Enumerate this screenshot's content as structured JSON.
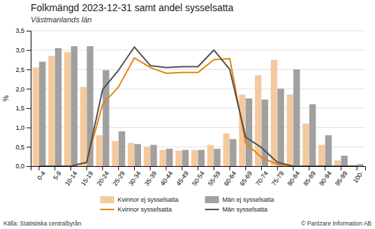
{
  "chart_data": {
    "type": "bar",
    "title": "Folkmängd 2023-12-31 samt andel sysselsatta",
    "subtitle": "Västmanlands län",
    "ylabel": "%",
    "categories": [
      "0-4",
      "5-9",
      "10-14",
      "15-19",
      "20-24",
      "25-29",
      "30-34",
      "35-39",
      "40-44",
      "45-49",
      "50-54",
      "55-59",
      "60-64",
      "65-69",
      "70-74",
      "75-79",
      "80-84",
      "85-89",
      "90-94",
      "95-99",
      "100-"
    ],
    "series": [
      {
        "name": "Kvinnor ej sysselsatta",
        "type": "bar",
        "color": "#f5c9a0",
        "values": [
          2.55,
          2.85,
          2.95,
          2.05,
          0.8,
          0.65,
          0.6,
          0.5,
          0.42,
          0.4,
          0.42,
          0.55,
          0.85,
          1.85,
          2.35,
          2.75,
          1.85,
          1.1,
          0.55,
          0.15,
          0.03
        ]
      },
      {
        "name": "Män ej sysselsatta",
        "type": "bar",
        "color": "#a0a0a0",
        "values": [
          2.7,
          3.05,
          3.1,
          3.1,
          2.48,
          0.9,
          0.57,
          0.55,
          0.45,
          0.42,
          0.42,
          0.45,
          0.7,
          1.75,
          1.72,
          2.0,
          2.5,
          1.6,
          0.8,
          0.27,
          0.05
        ]
      },
      {
        "name": "Kvinnor sysselsatta",
        "type": "line",
        "color": "#e8820a",
        "values": [
          0.0,
          0.0,
          0.0,
          0.1,
          1.6,
          2.05,
          2.8,
          2.55,
          2.4,
          2.42,
          2.42,
          2.75,
          2.78,
          0.6,
          0.22,
          0.05,
          0.0,
          0.0,
          0.0,
          0.0,
          0.0
        ]
      },
      {
        "name": "Män sysselsatta",
        "type": "line",
        "color": "#505050",
        "values": [
          0.0,
          0.0,
          0.0,
          0.1,
          1.98,
          2.48,
          3.08,
          2.6,
          2.55,
          2.57,
          2.57,
          3.0,
          2.5,
          0.75,
          0.48,
          0.1,
          0.0,
          0.0,
          0.0,
          0.0,
          0.0
        ]
      }
    ],
    "ylim": [
      0,
      3.5
    ],
    "yticks": [
      {
        "value": 0.0,
        "label": "0,0"
      },
      {
        "value": 0.5,
        "label": "0,5"
      },
      {
        "value": 1.0,
        "label": "1,0"
      },
      {
        "value": 1.5,
        "label": "1,5"
      },
      {
        "value": 2.0,
        "label": "2,0"
      },
      {
        "value": 2.5,
        "label": "2,5"
      },
      {
        "value": 3.0,
        "label": "3,0"
      },
      {
        "value": 3.5,
        "label": "3,5"
      }
    ],
    "grid": true,
    "legend": "bottom",
    "annotations": [
      "Källa: Statistiska centralbyrån",
      "© Pantzare Information AB"
    ]
  }
}
